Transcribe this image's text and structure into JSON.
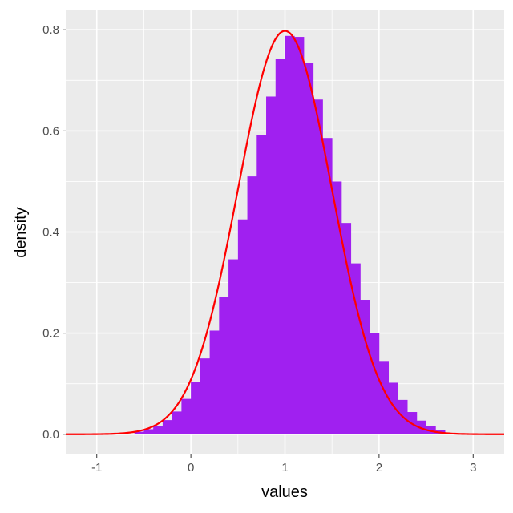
{
  "chart_data": {
    "type": "histogram",
    "xlabel": "values",
    "ylabel": "density",
    "xlim": [
      -1.33,
      3.33
    ],
    "ylim": [
      -0.04,
      0.84
    ],
    "x_ticks": [
      -1,
      0,
      1,
      2,
      3
    ],
    "x_tick_labels": [
      "-1",
      "0",
      "1",
      "2",
      "3"
    ],
    "y_ticks": [
      0.0,
      0.2,
      0.4,
      0.6,
      0.8
    ],
    "y_tick_labels": [
      "0.0",
      "0.2",
      "0.4",
      "0.6",
      "0.8"
    ],
    "grid": true,
    "histogram": {
      "fill_color": "#a020f0",
      "bins": [
        {
          "x0": -0.6,
          "x1": -0.5,
          "density": 0.005
        },
        {
          "x0": -0.5,
          "x1": -0.4,
          "density": 0.01
        },
        {
          "x0": -0.4,
          "x1": -0.3,
          "density": 0.017
        },
        {
          "x0": -0.3,
          "x1": -0.2,
          "density": 0.028
        },
        {
          "x0": -0.2,
          "x1": -0.1,
          "density": 0.045
        },
        {
          "x0": -0.1,
          "x1": 0.0,
          "density": 0.07
        },
        {
          "x0": 0.0,
          "x1": 0.1,
          "density": 0.104
        },
        {
          "x0": 0.1,
          "x1": 0.2,
          "density": 0.15
        },
        {
          "x0": 0.2,
          "x1": 0.3,
          "density": 0.205
        },
        {
          "x0": 0.3,
          "x1": 0.4,
          "density": 0.272
        },
        {
          "x0": 0.4,
          "x1": 0.5,
          "density": 0.346
        },
        {
          "x0": 0.5,
          "x1": 0.6,
          "density": 0.425
        },
        {
          "x0": 0.6,
          "x1": 0.7,
          "density": 0.51
        },
        {
          "x0": 0.7,
          "x1": 0.8,
          "density": 0.592
        },
        {
          "x0": 0.8,
          "x1": 0.9,
          "density": 0.668
        },
        {
          "x0": 0.9,
          "x1": 1.0,
          "density": 0.742
        },
        {
          "x0": 1.0,
          "x1": 1.1,
          "density": 0.788
        },
        {
          "x0": 1.1,
          "x1": 1.2,
          "density": 0.786
        },
        {
          "x0": 1.2,
          "x1": 1.3,
          "density": 0.735
        },
        {
          "x0": 1.3,
          "x1": 1.4,
          "density": 0.662
        },
        {
          "x0": 1.4,
          "x1": 1.5,
          "density": 0.586
        },
        {
          "x0": 1.5,
          "x1": 1.6,
          "density": 0.5
        },
        {
          "x0": 1.6,
          "x1": 1.7,
          "density": 0.418
        },
        {
          "x0": 1.7,
          "x1": 1.8,
          "density": 0.338
        },
        {
          "x0": 1.8,
          "x1": 1.9,
          "density": 0.266
        },
        {
          "x0": 1.9,
          "x1": 2.0,
          "density": 0.2
        },
        {
          "x0": 2.0,
          "x1": 2.1,
          "density": 0.145
        },
        {
          "x0": 2.1,
          "x1": 2.2,
          "density": 0.102
        },
        {
          "x0": 2.2,
          "x1": 2.3,
          "density": 0.068
        },
        {
          "x0": 2.3,
          "x1": 2.4,
          "density": 0.044
        },
        {
          "x0": 2.4,
          "x1": 2.5,
          "density": 0.027
        },
        {
          "x0": 2.5,
          "x1": 2.6,
          "density": 0.016
        },
        {
          "x0": 2.6,
          "x1": 2.7,
          "density": 0.009
        }
      ]
    },
    "density_curve": {
      "color": "#ff0000",
      "mean": 1.0,
      "sd": 0.5,
      "x_range": [
        -1.33,
        3.33
      ]
    }
  }
}
